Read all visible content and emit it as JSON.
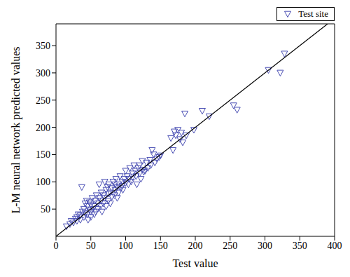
{
  "chart_data": {
    "type": "scatter",
    "xlabel": "Test value",
    "ylabel": "L-M neural network predicted values",
    "xlim": [
      0,
      400
    ],
    "xticks": [
      0,
      50,
      100,
      150,
      200,
      250,
      300,
      350,
      400
    ],
    "ylim": [
      0,
      390
    ],
    "yticks": [
      50,
      100,
      150,
      200,
      250,
      300,
      350
    ],
    "grid": false,
    "legend": "upper right",
    "series": [
      {
        "name": "Test site",
        "type": "scatter",
        "marker": "triangle-down",
        "color": "#4a4fb4",
        "x": [
          15,
          20,
          22,
          25,
          28,
          30,
          30,
          32,
          35,
          35,
          37,
          38,
          40,
          40,
          42,
          42,
          44,
          45,
          45,
          46,
          48,
          48,
          50,
          50,
          50,
          52,
          53,
          55,
          55,
          56,
          57,
          58,
          60,
          60,
          62,
          62,
          64,
          65,
          65,
          66,
          68,
          68,
          70,
          70,
          72,
          72,
          74,
          75,
          75,
          76,
          78,
          78,
          80,
          80,
          82,
          84,
          85,
          85,
          86,
          88,
          88,
          90,
          90,
          92,
          93,
          95,
          95,
          96,
          98,
          100,
          100,
          102,
          104,
          105,
          106,
          108,
          110,
          110,
          112,
          114,
          115,
          116,
          118,
          120,
          120,
          122,
          124,
          125,
          126,
          128,
          130,
          132,
          135,
          136,
          138,
          140,
          142,
          145,
          148,
          150,
          165,
          168,
          170,
          172,
          175,
          178,
          180,
          182,
          185,
          187,
          198,
          210,
          220,
          255,
          260,
          305,
          322,
          328
        ],
        "values": [
          18,
          22,
          28,
          25,
          32,
          35,
          28,
          40,
          38,
          30,
          90,
          45,
          35,
          50,
          42,
          60,
          65,
          40,
          55,
          30,
          48,
          62,
          45,
          58,
          35,
          70,
          50,
          55,
          40,
          65,
          45,
          75,
          60,
          50,
          95,
          70,
          55,
          65,
          80,
          45,
          75,
          60,
          70,
          100,
          55,
          85,
          90,
          65,
          78,
          95,
          80,
          60,
          72,
          88,
          100,
          75,
          85,
          95,
          105,
          90,
          70,
          95,
          80,
          110,
          88,
          100,
          92,
          85,
          105,
          98,
          120,
          110,
          95,
          105,
          125,
          100,
          115,
          108,
          130,
          120,
          110,
          95,
          125,
          115,
          130,
          105,
          138,
          122,
          118,
          120,
          135,
          125,
          140,
          130,
          158,
          150,
          135,
          142,
          145,
          148,
          180,
          158,
          192,
          185,
          195,
          178,
          190,
          172,
          225,
          185,
          195,
          230,
          220,
          240,
          232,
          305,
          300,
          335
        ]
      },
      {
        "type": "line",
        "color": "#000000",
        "x": [
          0,
          390
        ],
        "values": [
          0,
          390
        ]
      }
    ]
  }
}
